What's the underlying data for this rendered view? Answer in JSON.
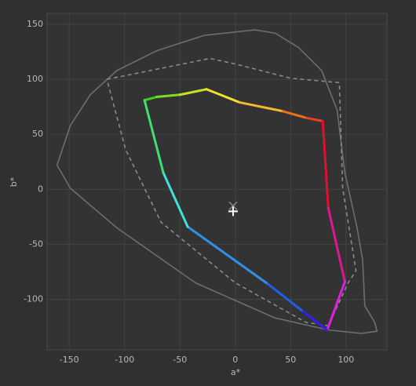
{
  "chart_data": {
    "type": "line",
    "x_label": "a*",
    "y_label": "b*",
    "xlim": [
      -170,
      137
    ],
    "ylim": [
      -146,
      160
    ],
    "xticks": [
      -150,
      -100,
      -50,
      0,
      50,
      100
    ],
    "yticks": [
      -100,
      -50,
      0,
      50,
      100,
      150
    ],
    "grid": true,
    "series": [
      {
        "color": "#6e6e6e",
        "dash": false,
        "x": [
          -161,
          -149,
          -131,
          -107,
          -71,
          -28,
          18,
          36,
          57,
          78,
          92,
          99,
          110,
          115,
          117,
          126,
          128,
          114,
          85,
          36,
          -36,
          -107,
          -149,
          -161
        ],
        "values": [
          22,
          58,
          86,
          108,
          126,
          140,
          145,
          142,
          129,
          108,
          72,
          15,
          -35,
          -64,
          -106,
          -121,
          -129,
          -131,
          -128,
          -117,
          -85,
          -35,
          1,
          22
        ]
      },
      {
        "color": "#8a8a8a",
        "dash": true,
        "x": [
          -116,
          -23,
          0,
          50,
          94,
          97,
          109,
          102,
          84,
          64,
          0,
          -67,
          -99,
          -116
        ],
        "values": [
          100,
          119,
          114,
          101,
          97,
          1,
          -74,
          -85,
          -124,
          -121,
          -85,
          -30,
          36,
          100
        ]
      },
      {
        "dash": false,
        "x": [
          -82,
          -71,
          -50,
          -26,
          4,
          43,
          64,
          79,
          84,
          99,
          83,
          60,
          28,
          -43,
          -65,
          -82
        ],
        "values": [
          81,
          84,
          86,
          91,
          79,
          71,
          65,
          62,
          -17,
          -84,
          -128,
          -110,
          -85,
          -34,
          15,
          81
        ],
        "colors": [
          "#3ccf20",
          "#7fdc22",
          "#c8e026",
          "#f0e030",
          "#f4b830",
          "#ec7020",
          "#e84020",
          "#e01030",
          "#e01890",
          "#e020e0",
          "#3020f0",
          "#2060e8",
          "#3090e8",
          "#40e0e0",
          "#40e070",
          "#3ccf20"
        ]
      }
    ],
    "markers": [
      {
        "symbol": "x",
        "x": -2,
        "y": -15,
        "color": "#8a8a8a"
      },
      {
        "symbol": "plus",
        "x": -2,
        "y": -20,
        "color": "#ffffff"
      }
    ]
  }
}
